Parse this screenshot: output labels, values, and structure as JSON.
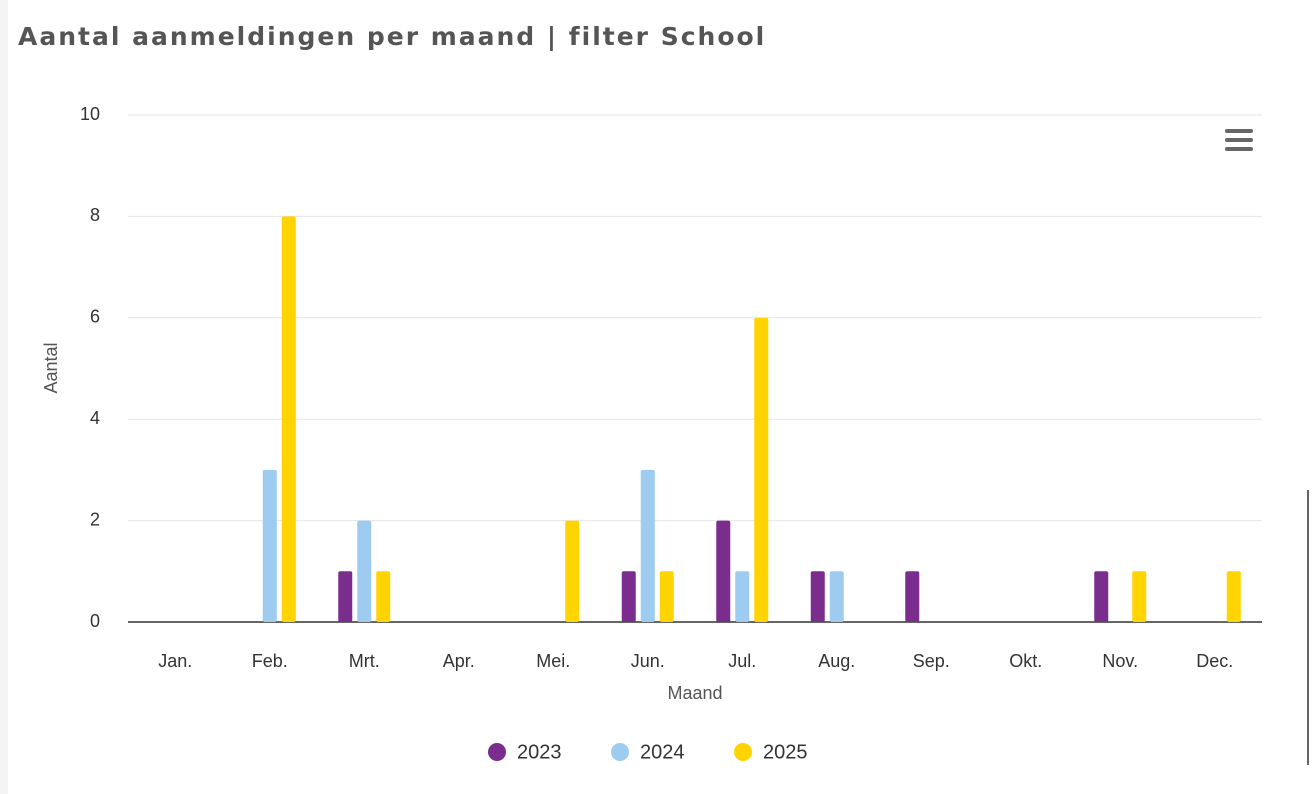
{
  "chart_data": {
    "type": "bar",
    "title": "Aantal aanmeldingen per maand | filter School",
    "x_label": "Maand",
    "y_label": "Aantal",
    "categories": [
      "Jan.",
      "Feb.",
      "Mrt.",
      "Apr.",
      "Mei.",
      "Jun.",
      "Jul.",
      "Aug.",
      "Sep.",
      "Okt.",
      "Nov.",
      "Dec."
    ],
    "series": [
      {
        "name": "2023",
        "color": "#7b2d8e",
        "values": [
          0,
          0,
          1,
          0,
          0,
          1,
          2,
          1,
          1,
          0,
          1,
          0
        ]
      },
      {
        "name": "2024",
        "color": "#9ecbf0",
        "values": [
          0,
          3,
          2,
          0,
          0,
          3,
          1,
          1,
          0,
          0,
          0,
          0
        ]
      },
      {
        "name": "2025",
        "color": "#ffd400",
        "values": [
          0,
          8,
          1,
          0,
          2,
          1,
          6,
          0,
          0,
          0,
          1,
          1
        ]
      }
    ],
    "ylim": [
      0,
      10
    ],
    "yticks": [
      0,
      2,
      4,
      6,
      8,
      10
    ],
    "grid": true,
    "legend": "bottom"
  }
}
